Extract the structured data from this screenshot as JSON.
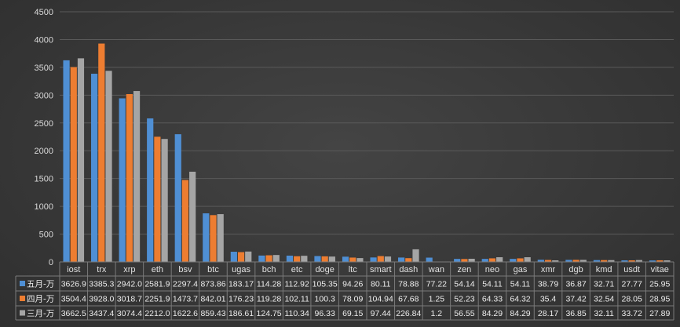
{
  "chart_data": {
    "type": "bar",
    "categories": [
      "iost",
      "trx",
      "xrp",
      "eth",
      "bsv",
      "btc",
      "ugas",
      "bch",
      "etc",
      "doge",
      "ltc",
      "smart",
      "dash",
      "wan",
      "zen",
      "neo",
      "gas",
      "xmr",
      "dgb",
      "kmd",
      "usdt",
      "vitae"
    ],
    "series": [
      {
        "name": "五月-万",
        "color": "#4f8fd4",
        "values": [
          3626.9,
          3385.3,
          2942.0,
          2581.9,
          2297.4,
          873.86,
          183.17,
          114.28,
          112.92,
          105.35,
          94.26,
          80.11,
          78.88,
          77.22,
          54.14,
          54.11,
          54.11,
          38.79,
          36.87,
          32.71,
          27.77,
          25.95
        ],
        "labels": [
          "3626.9",
          "3385.3",
          "2942.0",
          "2581.9",
          "2297.4",
          "873.86",
          "183.17",
          "114.28",
          "112.92",
          "105.35",
          "94.26",
          "80.11",
          "78.88",
          "77.22",
          "54.14",
          "54.11",
          "54.11",
          "38.79",
          "36.87",
          "32.71",
          "27.77",
          "25.95"
        ]
      },
      {
        "name": "四月-万",
        "color": "#ed7d31",
        "values": [
          3504.4,
          3928.0,
          3018.7,
          2251.9,
          1473.7,
          842.01,
          176.23,
          119.28,
          102.11,
          100.3,
          78.09,
          104.94,
          67.68,
          1.25,
          52.23,
          64.33,
          64.32,
          35.4,
          37.42,
          32.54,
          28.05,
          28.95
        ],
        "labels": [
          "3504.4",
          "3928.0",
          "3018.7",
          "2251.9",
          "1473.7",
          "842.01",
          "176.23",
          "119.28",
          "102.11",
          "100.3",
          "78.09",
          "104.94",
          "67.68",
          "1.25",
          "52.23",
          "64.33",
          "64.32",
          "35.4",
          "37.42",
          "32.54",
          "28.05",
          "28.95"
        ]
      },
      {
        "name": "三月-万",
        "color": "#a5a5a5",
        "values": [
          3662.5,
          3437.4,
          3074.4,
          2212.0,
          1622.6,
          859.43,
          186.61,
          124.75,
          110.34,
          96.33,
          69.15,
          97.44,
          226.84,
          1.2,
          56.55,
          84.29,
          84.29,
          28.17,
          36.85,
          32.11,
          33.72,
          27.89
        ],
        "labels": [
          "3662.5",
          "3437.4",
          "3074.4",
          "2212.0",
          "1622.6",
          "859.43",
          "186.61",
          "124.75",
          "110.34",
          "96.33",
          "69.15",
          "97.44",
          "226.84",
          "1.2",
          "56.55",
          "84.29",
          "84.29",
          "28.17",
          "36.85",
          "32.11",
          "33.72",
          "27.89"
        ]
      }
    ],
    "ylim": [
      0,
      4500
    ],
    "yticks": [
      "0",
      "500",
      "1000",
      "1500",
      "2000",
      "2500",
      "3000",
      "3500",
      "4000",
      "4500"
    ],
    "grid": true,
    "legend": "data-table",
    "colors": {
      "gridline": "#5a5a5a",
      "table_border": "#7a7a7a",
      "axis_text": "#d9d9d9"
    }
  }
}
